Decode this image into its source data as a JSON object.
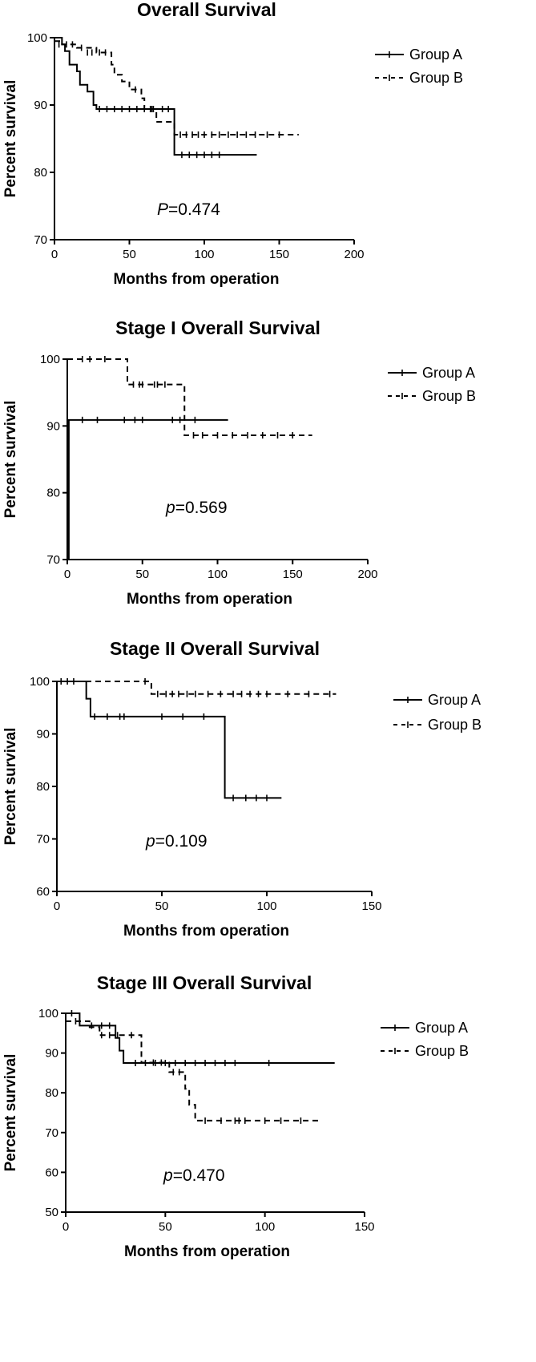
{
  "chart_data": [
    {
      "type": "line",
      "title": "Overall Survival",
      "xlabel": "Months from operation",
      "ylabel": "Percent survival",
      "xlim": [
        0,
        200
      ],
      "ylim": [
        70,
        100
      ],
      "xticks": [
        "0",
        "50",
        "100",
        "150",
        "200"
      ],
      "yticks": [
        "70",
        "80",
        "90",
        "100"
      ],
      "xtick_values": [
        0,
        50,
        100,
        150,
        200
      ],
      "ytick_values": [
        70,
        80,
        90,
        100
      ],
      "p_label": "P",
      "p_value": "=0.474",
      "legend_position": "top-right",
      "series": [
        {
          "name": "Group A",
          "style": "solid",
          "steps": [
            [
              0,
              100
            ],
            [
              5,
              99
            ],
            [
              7,
              98
            ],
            [
              10,
              96
            ],
            [
              15,
              95
            ],
            [
              17,
              93
            ],
            [
              22,
              92
            ],
            [
              26,
              90
            ],
            [
              28,
              89.4
            ],
            [
              80,
              82.6
            ],
            [
              135,
              82.6
            ]
          ],
          "censors": [
            [
              3,
              99
            ],
            [
              30,
              89.4
            ],
            [
              35,
              89.4
            ],
            [
              40,
              89.4
            ],
            [
              45,
              89.4
            ],
            [
              50,
              89.4
            ],
            [
              55,
              89.4
            ],
            [
              60,
              89.4
            ],
            [
              65,
              89.4
            ],
            [
              72,
              89.4
            ],
            [
              76,
              89.4
            ],
            [
              85,
              82.6
            ],
            [
              90,
              82.6
            ],
            [
              95,
              82.6
            ],
            [
              100,
              82.6
            ],
            [
              105,
              82.6
            ],
            [
              110,
              82.6
            ]
          ]
        },
        {
          "name": "Group B",
          "style": "dashed",
          "steps": [
            [
              0,
              99.5
            ],
            [
              5,
              99
            ],
            [
              15,
              98.5
            ],
            [
              28,
              97.8
            ],
            [
              38,
              96
            ],
            [
              40,
              94.5
            ],
            [
              45,
              93.5
            ],
            [
              50,
              92.3
            ],
            [
              58,
              91
            ],
            [
              60,
              89.4
            ],
            [
              68,
              87.5
            ],
            [
              80,
              85.6
            ],
            [
              163,
              85.6
            ]
          ],
          "censors": [
            [
              8,
              99
            ],
            [
              12,
              99
            ],
            [
              18,
              98.5
            ],
            [
              22,
              97.8
            ],
            [
              25,
              97.8
            ],
            [
              30,
              97.8
            ],
            [
              34,
              97.8
            ],
            [
              54,
              92.3
            ],
            [
              64,
              89.4
            ],
            [
              66,
              89.4
            ],
            [
              84,
              85.6
            ],
            [
              88,
              85.6
            ],
            [
              92,
              85.6
            ],
            [
              96,
              85.6
            ],
            [
              100,
              85.6
            ],
            [
              105,
              85.6
            ],
            [
              110,
              85.6
            ],
            [
              116,
              85.6
            ],
            [
              122,
              85.6
            ],
            [
              128,
              85.6
            ],
            [
              134,
              85.6
            ],
            [
              142,
              85.6
            ],
            [
              150,
              85.6
            ]
          ]
        }
      ]
    },
    {
      "type": "line",
      "title": "Stage I  Overall Survival",
      "xlabel": "Months from operation",
      "ylabel": "Percent survival",
      "xlim": [
        0,
        200
      ],
      "ylim": [
        70,
        100
      ],
      "xticks": [
        "0",
        "50",
        "100",
        "150",
        "200"
      ],
      "yticks": [
        "70",
        "80",
        "90",
        "100"
      ],
      "xtick_values": [
        0,
        50,
        100,
        150,
        200
      ],
      "ytick_values": [
        70,
        80,
        90,
        100
      ],
      "p_label": "p",
      "p_value": "=0.569",
      "legend_position": "top-right",
      "series": [
        {
          "name": "Group A",
          "style": "solid",
          "steps": [
            [
              0,
              70
            ],
            [
              1,
              90.9
            ],
            [
              107,
              90.9
            ]
          ],
          "censors": [
            [
              10,
              90.9
            ],
            [
              20,
              90.9
            ],
            [
              38,
              90.9
            ],
            [
              45,
              90.9
            ],
            [
              50,
              90.9
            ],
            [
              70,
              90.9
            ],
            [
              75,
              90.9
            ],
            [
              85,
              90.9
            ]
          ]
        },
        {
          "name": "Group B",
          "style": "dashed",
          "steps": [
            [
              0,
              100
            ],
            [
              40,
              96.2
            ],
            [
              78,
              88.6
            ],
            [
              163,
              88.6
            ]
          ],
          "censors": [
            [
              10,
              100
            ],
            [
              15,
              100
            ],
            [
              25,
              100
            ],
            [
              44,
              96.2
            ],
            [
              48,
              96.2
            ],
            [
              50,
              96.2
            ],
            [
              58,
              96.2
            ],
            [
              60,
              96.2
            ],
            [
              65,
              96.2
            ],
            [
              84,
              88.6
            ],
            [
              90,
              88.6
            ],
            [
              100,
              88.6
            ],
            [
              110,
              88.6
            ],
            [
              120,
              88.6
            ],
            [
              130,
              88.6
            ],
            [
              140,
              88.6
            ],
            [
              150,
              88.6
            ]
          ]
        }
      ]
    },
    {
      "type": "line",
      "title": "Stage II Overall Survival",
      "xlabel": "Months from operation",
      "ylabel": "Percent survival",
      "xlim": [
        0,
        150
      ],
      "ylim": [
        60,
        100
      ],
      "xticks": [
        "0",
        "50",
        "100",
        "150"
      ],
      "yticks": [
        "60",
        "70",
        "80",
        "90",
        "100"
      ],
      "xtick_values": [
        0,
        50,
        100,
        150
      ],
      "ytick_values": [
        60,
        70,
        80,
        90,
        100
      ],
      "p_label": "p",
      "p_value": "=0.109",
      "legend_position": "top-right",
      "series": [
        {
          "name": "Group A",
          "style": "solid",
          "steps": [
            [
              0,
              100
            ],
            [
              14,
              96.7
            ],
            [
              16,
              93.3
            ],
            [
              80,
              77.8
            ],
            [
              107,
              77.8
            ]
          ],
          "censors": [
            [
              2,
              100
            ],
            [
              8,
              100
            ],
            [
              18,
              93.3
            ],
            [
              24,
              93.3
            ],
            [
              30,
              93.3
            ],
            [
              32,
              93.3
            ],
            [
              50,
              93.3
            ],
            [
              60,
              93.3
            ],
            [
              70,
              93.3
            ],
            [
              84,
              77.8
            ],
            [
              90,
              77.8
            ],
            [
              95,
              77.8
            ],
            [
              100,
              77.8
            ]
          ]
        },
        {
          "name": "Group B",
          "style": "dashed",
          "steps": [
            [
              0,
              100
            ],
            [
              45,
              97.6
            ],
            [
              133,
              97.6
            ]
          ],
          "censors": [
            [
              5,
              100
            ],
            [
              42,
              100
            ],
            [
              48,
              97.6
            ],
            [
              52,
              97.6
            ],
            [
              55,
              97.6
            ],
            [
              58,
              97.6
            ],
            [
              62,
              97.6
            ],
            [
              66,
              97.6
            ],
            [
              72,
              97.6
            ],
            [
              78,
              97.6
            ],
            [
              84,
              97.6
            ],
            [
              88,
              97.6
            ],
            [
              92,
              97.6
            ],
            [
              96,
              97.6
            ],
            [
              100,
              97.6
            ],
            [
              110,
              97.6
            ],
            [
              120,
              97.6
            ],
            [
              130,
              97.6
            ]
          ]
        }
      ]
    },
    {
      "type": "line",
      "title": "Stage III  Overall Survival",
      "xlabel": "Months from operation",
      "ylabel": "Percent survival",
      "xlim": [
        0,
        150
      ],
      "ylim": [
        50,
        100
      ],
      "xticks": [
        "0",
        "50",
        "100",
        "150"
      ],
      "yticks": [
        "50",
        "60",
        "70",
        "80",
        "90",
        "100"
      ],
      "xtick_values": [
        0,
        50,
        100,
        150
      ],
      "ytick_values": [
        50,
        60,
        70,
        80,
        90,
        100
      ],
      "p_label": "p",
      "p_value": "=0.470",
      "legend_position": "top-right",
      "series": [
        {
          "name": "Group A",
          "style": "solid",
          "steps": [
            [
              0,
              100
            ],
            [
              7,
              96.9
            ],
            [
              25,
              93.8
            ],
            [
              27,
              90.6
            ],
            [
              29,
              87.5
            ],
            [
              135,
              87.5
            ]
          ],
          "censors": [
            [
              3,
              100
            ],
            [
              13,
              96.9
            ],
            [
              18,
              96.9
            ],
            [
              22,
              96.9
            ],
            [
              35,
              87.5
            ],
            [
              40,
              87.5
            ],
            [
              45,
              87.5
            ],
            [
              50,
              87.5
            ],
            [
              55,
              87.5
            ],
            [
              60,
              87.5
            ],
            [
              65,
              87.5
            ],
            [
              70,
              87.5
            ],
            [
              75,
              87.5
            ],
            [
              80,
              87.5
            ],
            [
              85,
              87.5
            ],
            [
              102,
              87.5
            ]
          ]
        },
        {
          "name": "Group B",
          "style": "dashed",
          "steps": [
            [
              0,
              98
            ],
            [
              12,
              96.5
            ],
            [
              17,
              94.5
            ],
            [
              38,
              87.6
            ],
            [
              52,
              85.2
            ],
            [
              60,
              81
            ],
            [
              62,
              77
            ],
            [
              65,
              73
            ],
            [
              128,
              73
            ]
          ],
          "censors": [
            [
              5,
              98
            ],
            [
              18,
              94.5
            ],
            [
              22,
              94.5
            ],
            [
              26,
              94.5
            ],
            [
              33,
              94.5
            ],
            [
              44,
              87.6
            ],
            [
              48,
              87.6
            ],
            [
              54,
              85.2
            ],
            [
              57,
              85.2
            ],
            [
              70,
              73
            ],
            [
              78,
              73
            ],
            [
              85,
              73
            ],
            [
              87,
              73
            ],
            [
              90,
              73
            ],
            [
              100,
              73
            ],
            [
              108,
              73
            ],
            [
              118,
              73
            ]
          ]
        }
      ]
    }
  ]
}
